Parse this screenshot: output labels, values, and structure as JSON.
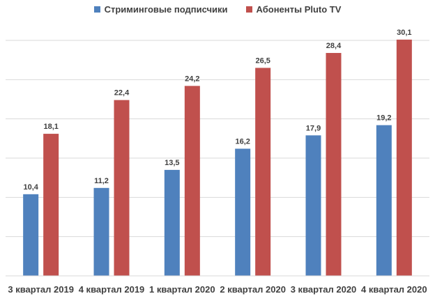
{
  "chart_data": {
    "type": "bar",
    "title": "",
    "xlabel": "",
    "ylabel": "",
    "categories": [
      "3 квартал 2019",
      "4 квартал 2019",
      "1 квартал 2020",
      "2 квартал 2020",
      "3 квартал 2020",
      "4 квартал 2020"
    ],
    "series": [
      {
        "name": "Стриминговые подписчики",
        "color": "#4f81bd",
        "values": [
          10.4,
          11.2,
          13.5,
          16.2,
          17.9,
          19.2
        ],
        "labels": [
          "10,4",
          "11,2",
          "13,5",
          "16,2",
          "17,9",
          "19,2"
        ]
      },
      {
        "name": "Абоненты Pluto TV",
        "color": "#c0504d",
        "values": [
          18.1,
          22.4,
          24.2,
          26.5,
          28.4,
          30.1
        ],
        "labels": [
          "18,1",
          "22,4",
          "24,2",
          "26,5",
          "28,4",
          "30,1"
        ]
      }
    ],
    "ylim": [
      0,
      30
    ],
    "grid": true,
    "y_axis_labels_shown": false,
    "legend": "top-center"
  }
}
